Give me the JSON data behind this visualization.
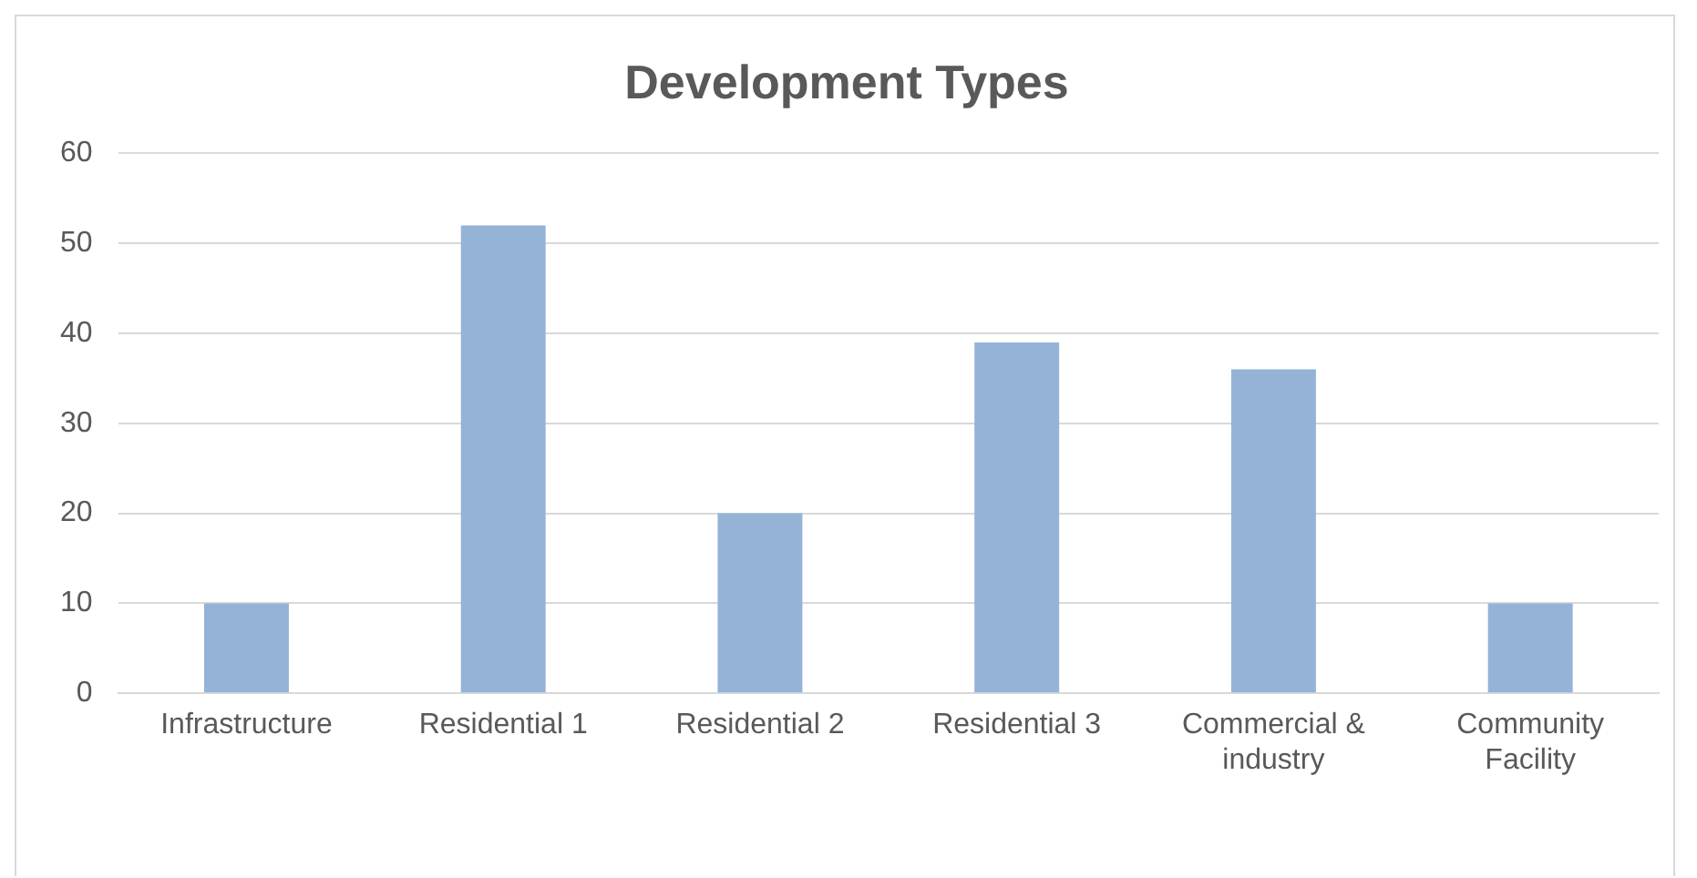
{
  "chart_data": {
    "type": "bar",
    "title": "Development Types",
    "categories": [
      "Infrastructure",
      "Residential 1",
      "Residential 2",
      "Residential 3",
      "Commercial & industry",
      "Community Facility"
    ],
    "values": [
      10,
      52,
      20,
      39,
      36,
      10
    ],
    "color": "#95b3d7",
    "ylim": [
      0,
      60
    ],
    "yticks": [
      0,
      10,
      20,
      30,
      40,
      50,
      60
    ],
    "grid": "y",
    "legend": false
  }
}
